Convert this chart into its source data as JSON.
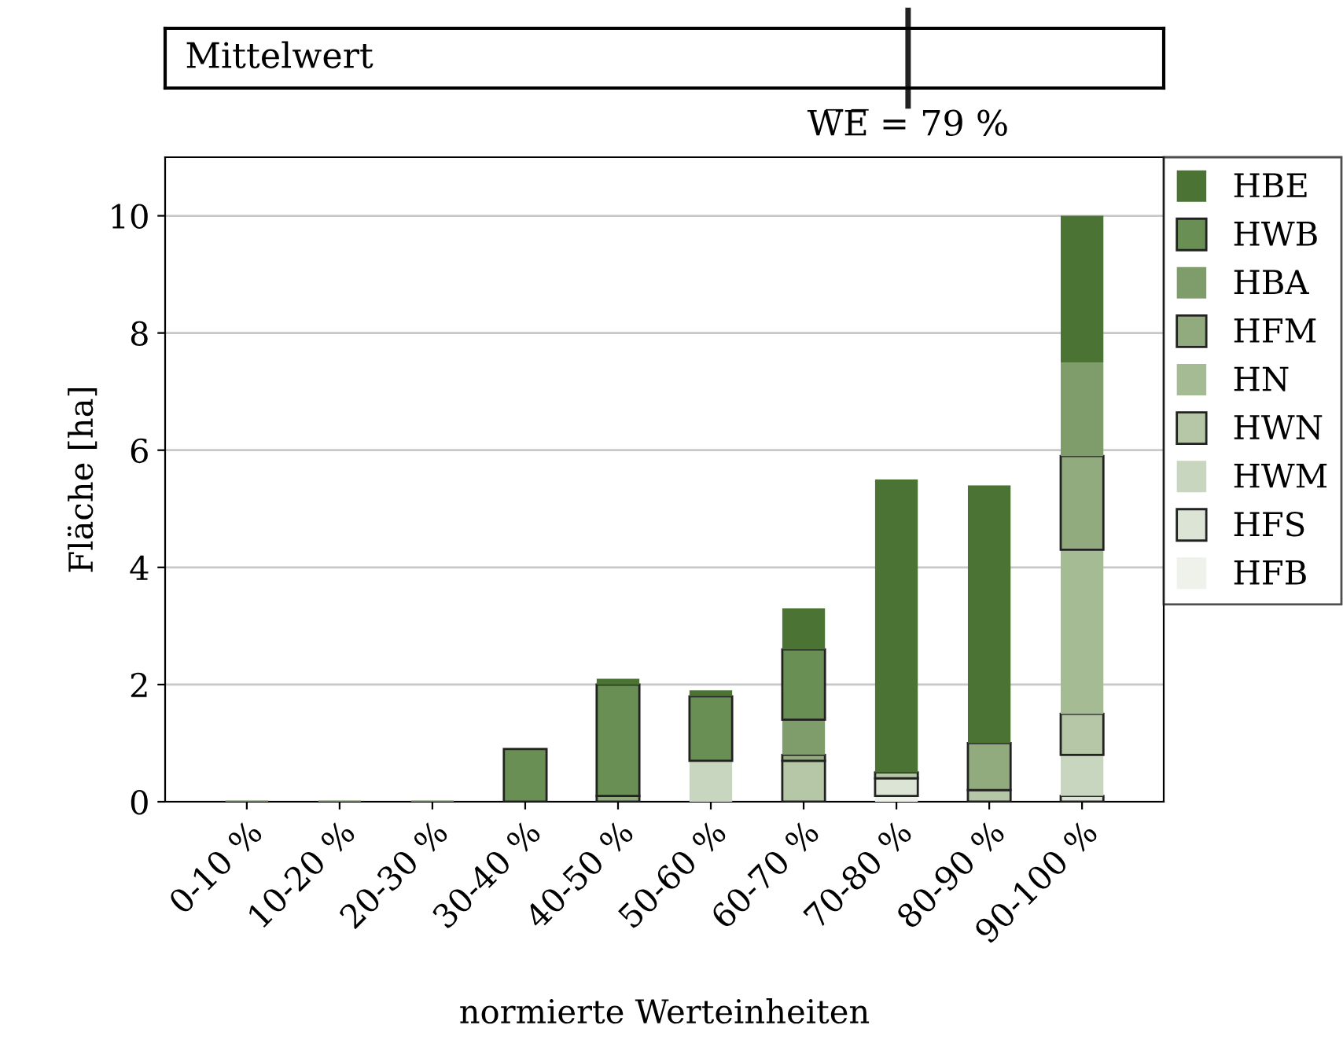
{
  "chart_data": [
    {
      "type": "other",
      "title": "Mittelwert",
      "annotations": [
        "W̅E̅ = 79 %"
      ]
    },
    {
      "type": "bar",
      "stacked": true,
      "xlabel": "normierte Werteinheiten",
      "ylabel": "Fläche [ha]",
      "categories": [
        "0-10 %",
        "10-20 %",
        "20-30 %",
        "30-40 %",
        "40-50 %",
        "50-60 %",
        "60-70 %",
        "70-80 %",
        "80-90 %",
        "90-100 %"
      ],
      "ylim": [
        0,
        11
      ],
      "yticks": [
        0,
        2,
        4,
        6,
        8,
        10
      ],
      "grid": "y",
      "legend": "top right",
      "series": [
        {
          "name": "HFB",
          "color": "#eef2ea",
          "values": [
            null,
            null,
            null,
            null,
            null,
            null,
            null,
            0.1,
            null,
            null
          ]
        },
        {
          "name": "HFS",
          "color": "#dce4d6",
          "values": [
            null,
            null,
            null,
            null,
            null,
            null,
            null,
            0.3,
            null,
            0.1
          ]
        },
        {
          "name": "HWM",
          "color": "#c8d6bf",
          "values": [
            null,
            null,
            null,
            null,
            null,
            0.7,
            null,
            null,
            null,
            0.7
          ]
        },
        {
          "name": "HWN",
          "color": "#b5c7a7",
          "values": [
            null,
            null,
            null,
            null,
            null,
            null,
            0.7,
            0.1,
            0.2,
            0.7
          ]
        },
        {
          "name": "HN",
          "color": "#a5bb94",
          "values": [
            null,
            null,
            null,
            null,
            null,
            null,
            null,
            null,
            null,
            2.8
          ]
        },
        {
          "name": "HFM",
          "color": "#91ab7f",
          "values": [
            null,
            null,
            null,
            null,
            0.1,
            null,
            0.1,
            null,
            0.8,
            1.6
          ]
        },
        {
          "name": "HBA",
          "color": "#7f9d6b",
          "values": [
            null,
            null,
            null,
            null,
            null,
            null,
            0.6,
            null,
            null,
            1.6
          ]
        },
        {
          "name": "HWB",
          "color": "#6a8f55",
          "values": [
            0,
            0,
            0,
            0.9,
            1.9,
            1.1,
            1.2,
            null,
            null,
            null
          ]
        },
        {
          "name": "HBE",
          "color": "#4a7334",
          "values": [
            null,
            null,
            null,
            null,
            0.1,
            0.1,
            0.7,
            5.0,
            4.4,
            2.5
          ]
        }
      ]
    }
  ]
}
